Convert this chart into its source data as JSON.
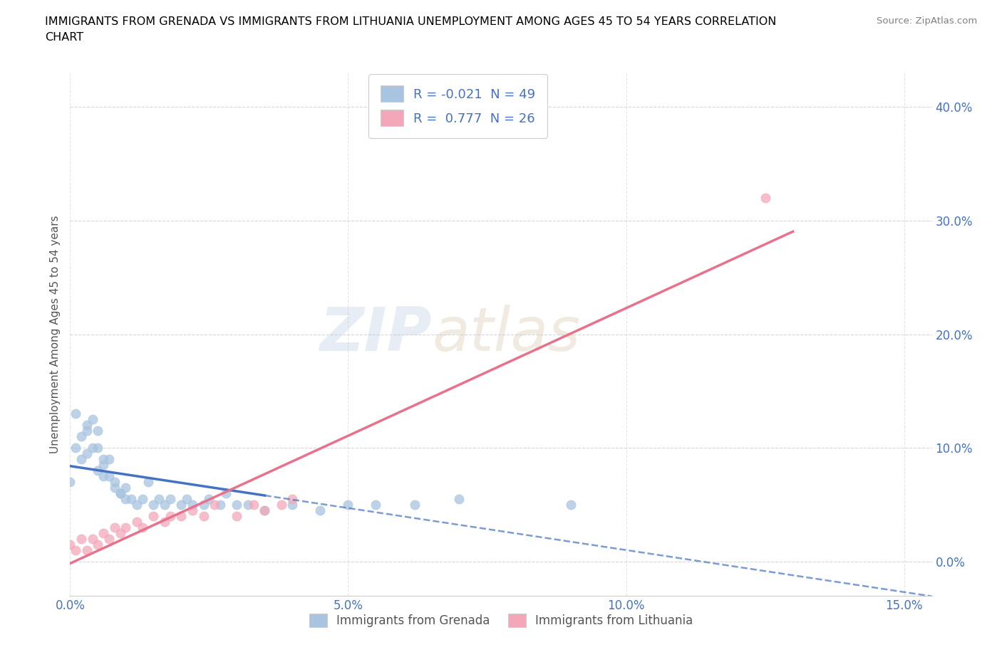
{
  "title_line1": "IMMIGRANTS FROM GRENADA VS IMMIGRANTS FROM LITHUANIA UNEMPLOYMENT AMONG AGES 45 TO 54 YEARS CORRELATION",
  "title_line2": "CHART",
  "source": "Source: ZipAtlas.com",
  "ylabel": "Unemployment Among Ages 45 to 54 years",
  "xlim": [
    0.0,
    0.155
  ],
  "ylim": [
    -0.03,
    0.43
  ],
  "xticks": [
    0.0,
    0.05,
    0.1,
    0.15
  ],
  "xticklabels": [
    "0.0%",
    "5.0%",
    "10.0%",
    "15.0%"
  ],
  "yticks": [
    0.0,
    0.1,
    0.2,
    0.3,
    0.4
  ],
  "yticklabels": [
    "0.0%",
    "10.0%",
    "20.0%",
    "30.0%",
    "40.0%"
  ],
  "watermark_zip": "ZIP",
  "watermark_atlas": "atlas",
  "grenada_color": "#a8c4e0",
  "grenada_edge": "#7aabd0",
  "lithuania_color": "#f4a7b9",
  "lithuania_edge": "#e07898",
  "grenada_line_color": "#4472c4",
  "lithuania_line_color": "#e8728c",
  "R_grenada": -0.021,
  "N_grenada": 49,
  "R_lithuania": 0.777,
  "N_lithuania": 26,
  "grenada_x": [
    0.0,
    0.001,
    0.001,
    0.002,
    0.002,
    0.003,
    0.003,
    0.003,
    0.004,
    0.004,
    0.005,
    0.005,
    0.005,
    0.006,
    0.006,
    0.006,
    0.007,
    0.007,
    0.008,
    0.008,
    0.009,
    0.009,
    0.01,
    0.01,
    0.011,
    0.012,
    0.013,
    0.014,
    0.015,
    0.016,
    0.017,
    0.018,
    0.02,
    0.021,
    0.022,
    0.024,
    0.025,
    0.027,
    0.028,
    0.03,
    0.032,
    0.035,
    0.04,
    0.045,
    0.05,
    0.055,
    0.062,
    0.07,
    0.09
  ],
  "grenada_y": [
    0.07,
    0.1,
    0.13,
    0.09,
    0.11,
    0.095,
    0.12,
    0.115,
    0.1,
    0.125,
    0.1,
    0.115,
    0.08,
    0.09,
    0.075,
    0.085,
    0.075,
    0.09,
    0.07,
    0.065,
    0.06,
    0.06,
    0.055,
    0.065,
    0.055,
    0.05,
    0.055,
    0.07,
    0.05,
    0.055,
    0.05,
    0.055,
    0.05,
    0.055,
    0.05,
    0.05,
    0.055,
    0.05,
    0.06,
    0.05,
    0.05,
    0.045,
    0.05,
    0.045,
    0.05,
    0.05,
    0.05,
    0.055,
    0.05
  ],
  "lithuania_x": [
    0.0,
    0.001,
    0.002,
    0.003,
    0.004,
    0.005,
    0.006,
    0.007,
    0.008,
    0.009,
    0.01,
    0.012,
    0.013,
    0.015,
    0.017,
    0.018,
    0.02,
    0.022,
    0.024,
    0.026,
    0.03,
    0.033,
    0.035,
    0.038,
    0.04,
    0.125
  ],
  "lithuania_y": [
    0.015,
    0.01,
    0.02,
    0.01,
    0.02,
    0.015,
    0.025,
    0.02,
    0.03,
    0.025,
    0.03,
    0.035,
    0.03,
    0.04,
    0.035,
    0.04,
    0.04,
    0.045,
    0.04,
    0.05,
    0.04,
    0.05,
    0.045,
    0.05,
    0.055,
    0.32
  ],
  "background_color": "#ffffff",
  "grid_color": "#cccccc",
  "legend_label_grenada": "Immigrants from Grenada",
  "legend_label_lithuania": "Immigrants from Lithuania"
}
